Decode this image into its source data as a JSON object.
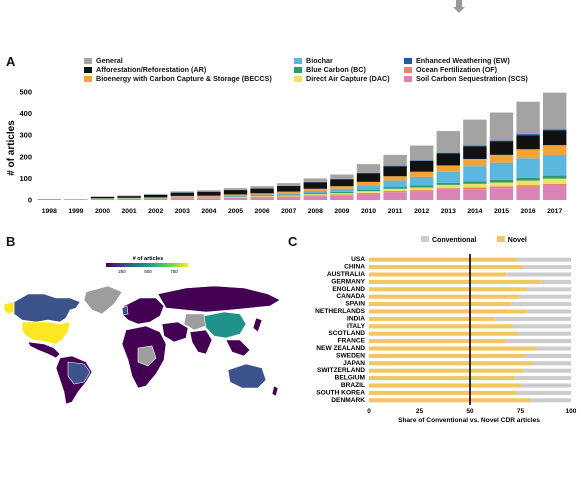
{
  "panels": {
    "a": "A",
    "b": "B",
    "c": "C"
  },
  "top_icon": "down-arrow-icon",
  "chart_data": [
    {
      "type": "bar",
      "stacked": true,
      "ylabel": "# of articles",
      "xlabel": "",
      "ylim": [
        0,
        500
      ],
      "yticks": [
        0,
        100,
        200,
        300,
        400,
        500
      ],
      "grid": false,
      "legend_position": "top",
      "categories": [
        "1998",
        "1999",
        "2000",
        "2001",
        "2002",
        "2003",
        "2004",
        "2005",
        "2006",
        "2007",
        "2008",
        "2009",
        "2010",
        "2011",
        "2012",
        "2013",
        "2014",
        "2015",
        "2016",
        "2017"
      ],
      "series": [
        {
          "name": "Soil Carbon Sequestration (SCS)",
          "color": "#d984b4",
          "values": [
            2,
            1,
            4,
            5,
            6,
            8,
            8,
            10,
            12,
            14,
            18,
            22,
            28,
            36,
            40,
            48,
            50,
            55,
            60,
            65
          ]
        },
        {
          "name": "Ocean Fertilization (OF)",
          "color": "#e8866a",
          "values": [
            0,
            0,
            1,
            1,
            1,
            2,
            2,
            2,
            3,
            3,
            4,
            4,
            5,
            6,
            6,
            7,
            8,
            8,
            9,
            10
          ]
        },
        {
          "name": "Direct Air Capture (DAC)",
          "color": "#f3e06a",
          "values": [
            0,
            0,
            1,
            1,
            1,
            2,
            2,
            3,
            3,
            4,
            5,
            6,
            8,
            10,
            12,
            15,
            17,
            18,
            21,
            24
          ]
        },
        {
          "name": "Blue Carbon (BC)",
          "color": "#2e9a6f",
          "values": [
            0,
            0,
            1,
            1,
            1,
            2,
            2,
            3,
            3,
            4,
            5,
            6,
            7,
            8,
            9,
            10,
            11,
            12,
            13,
            14
          ]
        },
        {
          "name": "Biochar",
          "color": "#5bb7e0",
          "values": [
            0,
            0,
            0,
            1,
            1,
            2,
            2,
            3,
            4,
            6,
            10,
            14,
            20,
            30,
            40,
            50,
            70,
            80,
            90,
            95
          ]
        },
        {
          "name": "Bioenergy with Carbon Capture & Storage (BECCS)",
          "color": "#f2a33a",
          "values": [
            0,
            0,
            1,
            1,
            2,
            3,
            4,
            5,
            6,
            8,
            10,
            12,
            16,
            20,
            24,
            30,
            34,
            36,
            42,
            46
          ]
        },
        {
          "name": "Afforestation/Reforestation (AR)",
          "color": "#111111",
          "values": [
            1,
            1,
            6,
            8,
            12,
            15,
            18,
            20,
            22,
            26,
            30,
            32,
            40,
            46,
            50,
            55,
            58,
            62,
            65,
            68
          ]
        },
        {
          "name": "Enhanced Weathering (EW)",
          "color": "#1e5aa8",
          "values": [
            0,
            0,
            0,
            0,
            0,
            1,
            1,
            1,
            1,
            1,
            2,
            2,
            2,
            3,
            3,
            4,
            4,
            4,
            5,
            5
          ]
        },
        {
          "name": "General",
          "color": "#a3a3a3",
          "values": [
            1,
            1,
            3,
            3,
            4,
            5,
            6,
            8,
            10,
            12,
            16,
            20,
            40,
            50,
            68,
            100,
            120,
            130,
            150,
            170
          ]
        }
      ],
      "legend_order": [
        "General",
        "Biochar",
        "Enhanced Weathering (EW)",
        "Afforestation/Reforestation (AR)",
        "Blue Carbon (BC)",
        "Ocean Fertilization (OF)",
        "Bioenergy with Carbon Capture & Storage (BECCS)",
        "Direct Air Capture (DAC)",
        "Soil Carbon Sequestration (SCS)"
      ]
    },
    {
      "type": "map",
      "colorbar_title": "# of articles",
      "colorbar_ticks": [
        "250",
        "500",
        "750"
      ],
      "colorbar_colors": [
        "#440154",
        "#3b528b",
        "#21918c",
        "#5ec962",
        "#fde725"
      ]
    },
    {
      "type": "bar",
      "stacked": true,
      "orientation": "horizontal",
      "xlabel": "Share of Conventional vs. Novel CDR articles",
      "ylabel": "",
      "xlim": [
        0,
        100
      ],
      "xticks": [
        0,
        25,
        50,
        75,
        100
      ],
      "reference_line_x": 50,
      "legend_position": "top",
      "categories": [
        "USA",
        "CHINA",
        "AUSTRALIA",
        "GERMANY",
        "ENGLAND",
        "CANADA",
        "SPAIN",
        "NETHERLANDS",
        "INDIA",
        "ITALY",
        "SCOTLAND",
        "FRANCE",
        "NEW ZEALAND",
        "SWEDEN",
        "JAPAN",
        "SWITZERLAND",
        "BELGIUM",
        "BRAZIL",
        "SOUTH KOREA",
        "DENMARK"
      ],
      "series": [
        {
          "name": "Novel",
          "color": "#f2c661",
          "values": [
            73,
            76,
            68,
            85,
            78,
            74,
            70,
            78,
            62,
            71,
            74,
            68,
            83,
            77,
            81,
            76,
            72,
            75,
            73,
            80
          ]
        },
        {
          "name": "Conventional",
          "color": "#cccccc",
          "values": [
            27,
            24,
            32,
            15,
            22,
            26,
            30,
            22,
            38,
            29,
            26,
            32,
            17,
            23,
            19,
            24,
            28,
            25,
            27,
            20
          ]
        }
      ],
      "legend_order": [
        "Conventional",
        "Novel"
      ]
    }
  ]
}
